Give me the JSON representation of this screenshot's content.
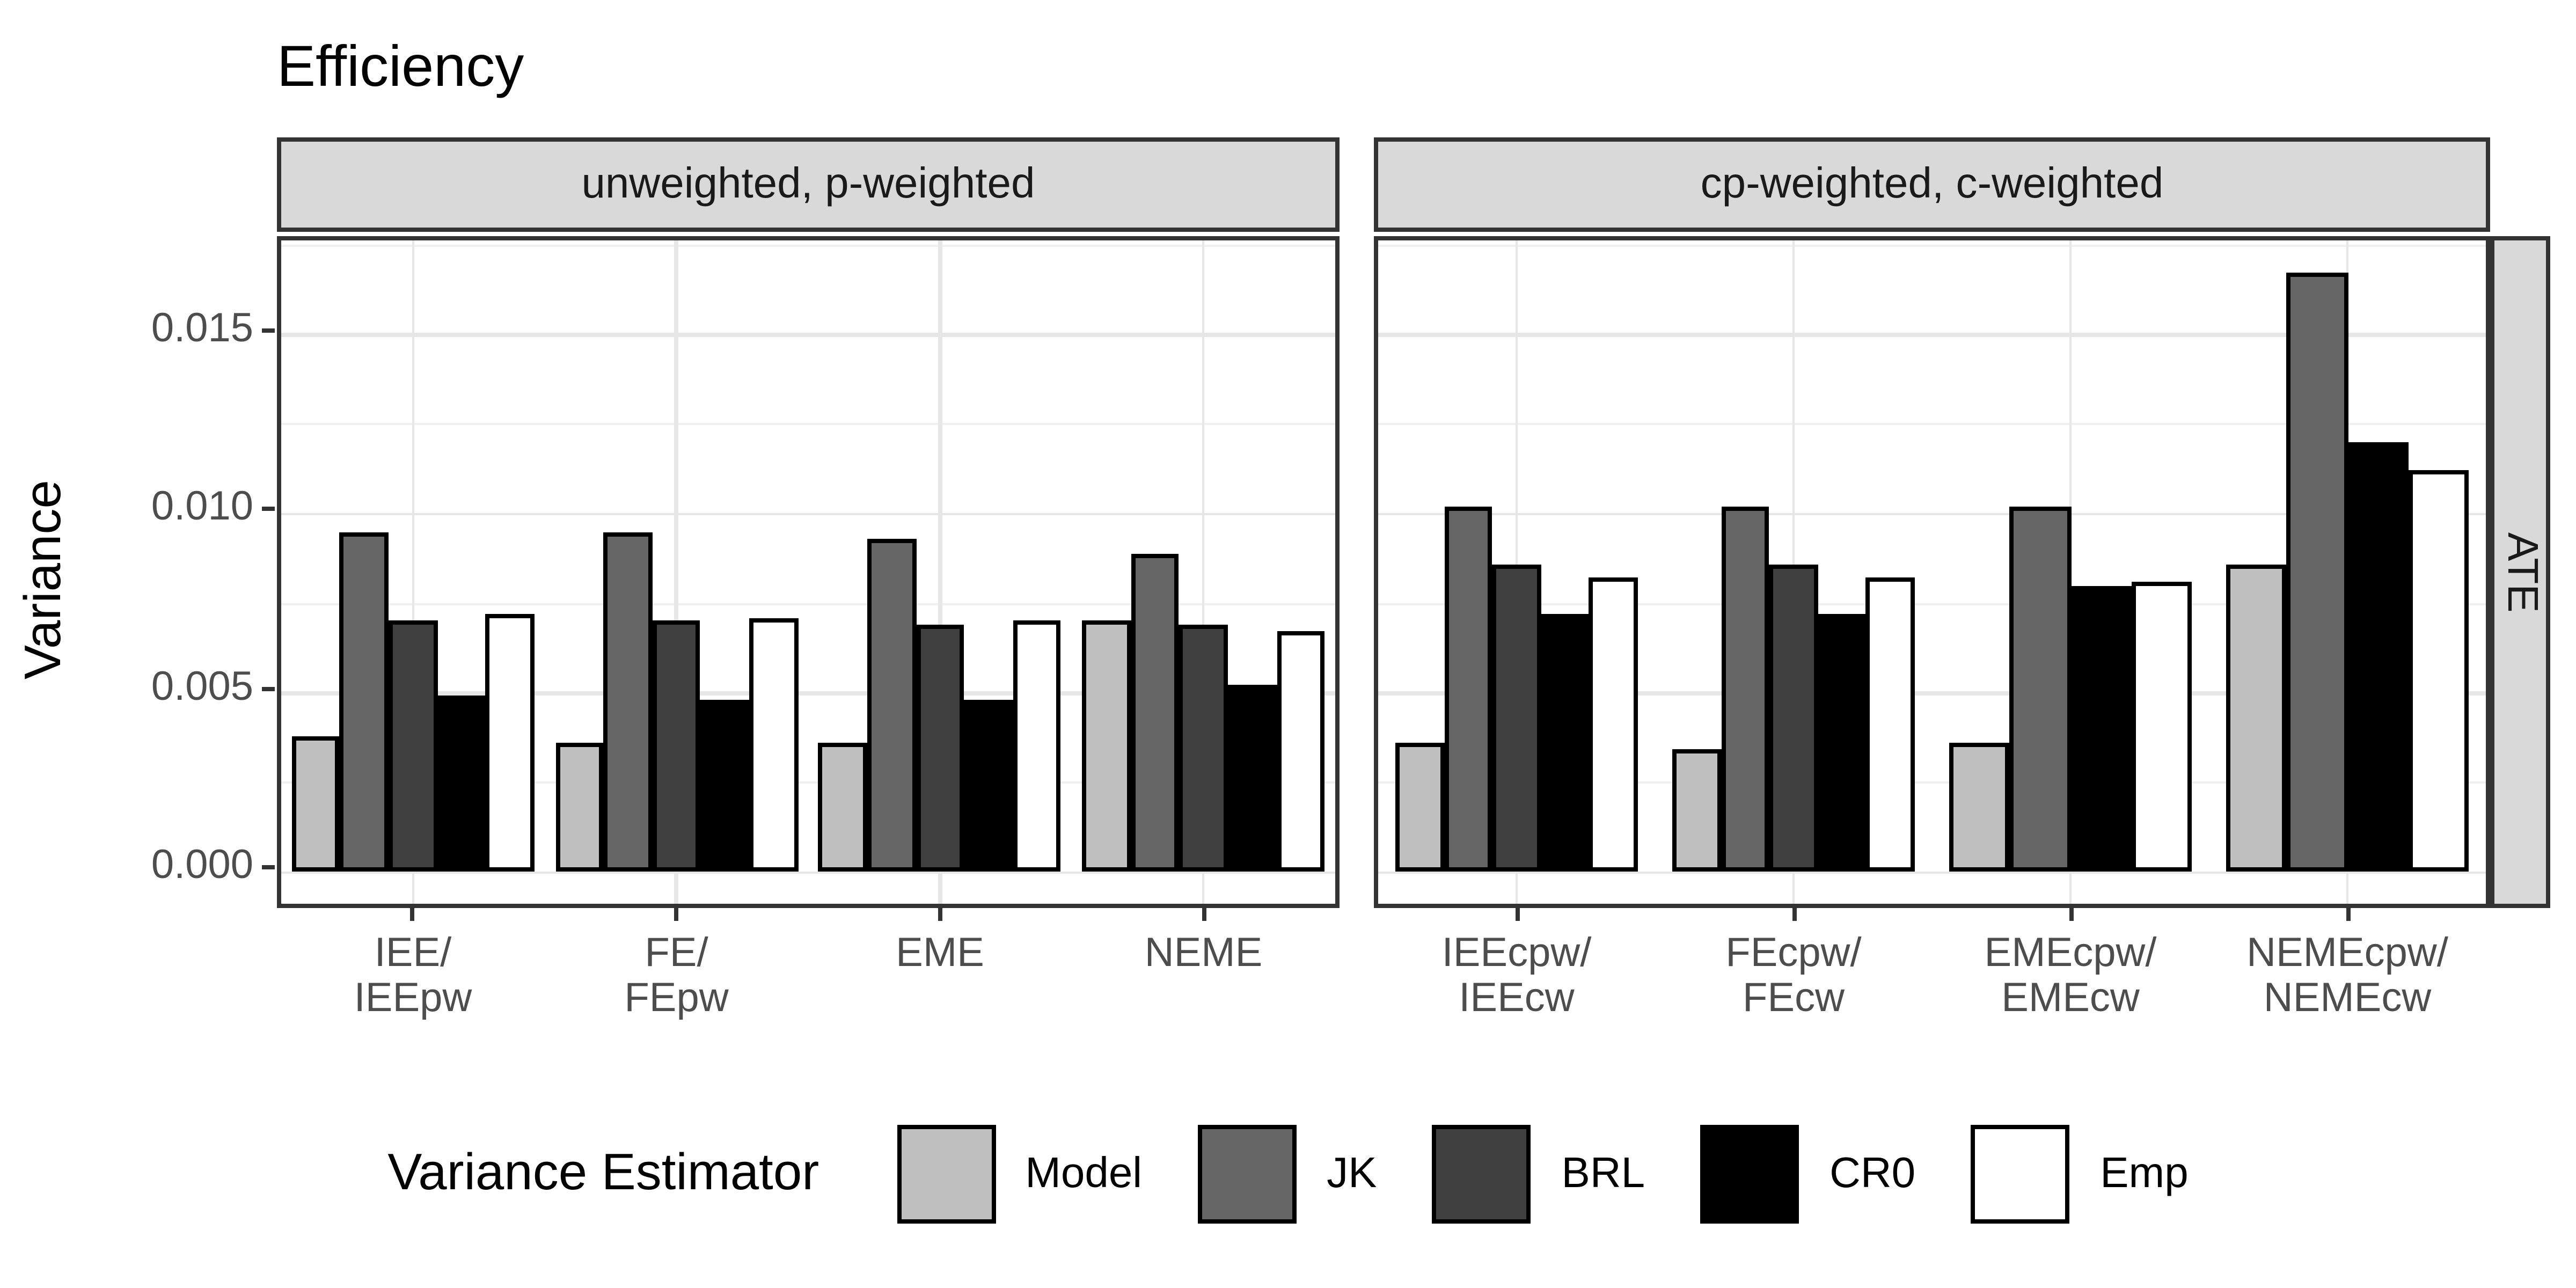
{
  "chart_data": {
    "type": "bar",
    "title": "Efficiency",
    "xlabel": "",
    "ylabel": "Variance",
    "ylim": [
      0,
      0.0176
    ],
    "yticks": [
      0,
      0.005,
      0.01,
      0.015
    ],
    "ytick_labels": [
      "0.000",
      "0.005",
      "0.010",
      "0.015"
    ],
    "minor_yticks": [
      0.0025,
      0.0075,
      0.0125,
      0.0175
    ],
    "grid": true,
    "legend_position": "bottom",
    "legend_title": "Variance Estimator",
    "series_names": [
      "Model",
      "JK",
      "BRL",
      "CR0",
      "Emp"
    ],
    "series_colors": {
      "Model": "#bfbfbf",
      "JK": "#666666",
      "BRL": "#404040",
      "CR0": "#000000",
      "Emp": "#ffffff"
    },
    "right_strip": "ATE",
    "facets": [
      {
        "strip": "unweighted, p-weighted",
        "categories": [
          [
            "IEE/",
            "IEEpw"
          ],
          [
            "FE/",
            "FEpw"
          ],
          [
            "EME"
          ],
          [
            "NEME"
          ]
        ],
        "series": [
          {
            "name": "Model",
            "values": [
              0.0038,
              0.0036,
              0.0036,
              0.007
            ]
          },
          {
            "name": "JK",
            "values": [
              0.0095,
              0.0095,
              0.0093,
              0.0089
            ]
          },
          {
            "name": "BRL",
            "values": [
              0.007,
              0.007,
              0.0069,
              0.0069
            ]
          },
          {
            "name": "CR0",
            "values": [
              0.0049,
              0.0048,
              0.0048,
              0.0052
            ]
          },
          {
            "name": "Emp",
            "values": [
              0.0072,
              0.0071,
              0.007,
              0.0067
            ]
          }
        ]
      },
      {
        "strip": "cp-weighted, c-weighted",
        "categories": [
          [
            "IEEcpw/",
            "IEEcw"
          ],
          [
            "FEcpw/",
            "FEcw"
          ],
          [
            "EMEcpw/",
            "EMEcw"
          ],
          [
            "NEMEcpw/",
            "NEMEcw"
          ]
        ],
        "series": [
          {
            "name": "Model",
            "values": [
              0.0036,
              0.0034,
              0.0036,
              0.0086
            ]
          },
          {
            "name": "JK",
            "values": [
              0.0102,
              0.0102,
              0.0102,
              0.0167
            ]
          },
          {
            "name": "BRL",
            "values": [
              0.0086,
              0.0086,
              null,
              null
            ]
          },
          {
            "name": "CR0",
            "values": [
              0.0072,
              0.0072,
              0.008,
              0.012
            ]
          },
          {
            "name": "Emp",
            "values": [
              0.0082,
              0.0082,
              0.0081,
              0.0112
            ]
          }
        ]
      }
    ],
    "style_colors": {
      "strip_bg": "#d9d9d9",
      "panel_border": "#333333",
      "grid_major": "#e6e6e6",
      "grid_minor": "#f0f0f0",
      "tick_text": "#4d4d4d",
      "bar_outline": "#000000"
    }
  }
}
